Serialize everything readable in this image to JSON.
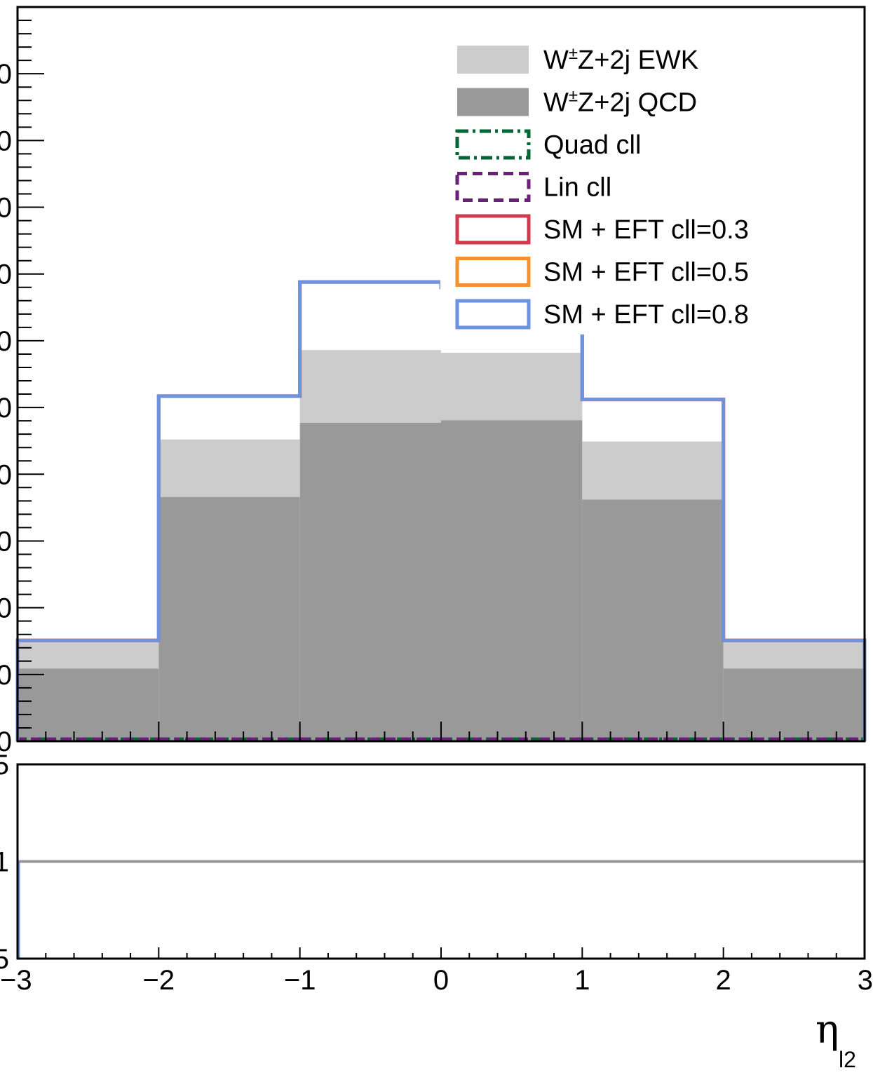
{
  "chart_data": {
    "type": "bar",
    "histtype": "stacked-step",
    "bin_edges": [
      -3,
      -2,
      -1,
      0,
      1,
      2,
      3
    ],
    "top_panel": {
      "ylim": [
        0,
        11
      ],
      "y_tick_labels": [
        "0",
        "0",
        "0",
        "0",
        "0",
        "0",
        "0",
        "0",
        "0",
        "0",
        "0"
      ],
      "stacked_series": [
        {
          "name": "W±Z+2j QCD",
          "values": [
            1.09,
            3.66,
            4.77,
            4.81,
            3.62,
            1.09
          ],
          "color": "#999999"
        },
        {
          "name": "W±Z+2j EWK",
          "values": [
            0.42,
            0.86,
            1.09,
            1.01,
            0.87,
            0.42
          ],
          "color": "#cccccc"
        }
      ],
      "line_series": [
        {
          "name": "Quad cll",
          "values": [
            0.03,
            0.03,
            0.03,
            0.03,
            0.03,
            0.03
          ],
          "color": "#006633",
          "style": "dash-dot"
        },
        {
          "name": "Lin cll",
          "values": [
            0.03,
            0.03,
            0.03,
            0.03,
            0.03,
            0.03
          ],
          "color": "#6b1f7a",
          "style": "dashed"
        },
        {
          "name": "SM + EFT cll=0.3",
          "values": [
            1.51,
            5.17,
            6.88,
            6.8,
            5.12,
            1.51
          ],
          "color": "#d03a4c",
          "style": "solid"
        },
        {
          "name": "SM + EFT cll=0.5",
          "values": [
            1.51,
            5.17,
            6.88,
            6.8,
            5.12,
            1.51
          ],
          "color": "#f39030",
          "style": "solid"
        },
        {
          "name": "SM + EFT cll=0.8",
          "values": [
            1.51,
            5.17,
            6.88,
            6.8,
            5.12,
            1.51
          ],
          "color": "#6e92e0",
          "style": "solid"
        }
      ],
      "legend_placement": "top-right"
    },
    "ratio_panel": {
      "ylim": [
        0.5,
        1.5
      ],
      "y_tick_labels": [
        "5",
        "1",
        "5"
      ],
      "ratio_value": 1.0,
      "line_color": "#999999"
    },
    "x_tick_labels": [
      "−3",
      "−2",
      "−1",
      "0",
      "1",
      "2",
      "3"
    ],
    "xlim": [
      -3,
      3
    ],
    "xlabel": "η",
    "xlabel_sub": "l2"
  },
  "legend": [
    {
      "label_main": "W",
      "label_sup": "±",
      "label_rest": "Z+2j EWK",
      "color": "#cccccc",
      "style": "fill"
    },
    {
      "label_main": "W",
      "label_sup": "±",
      "label_rest": "Z+2j QCD",
      "color": "#999999",
      "style": "fill"
    },
    {
      "label_main": "Quad cll",
      "color": "#006633",
      "style": "dash-dot"
    },
    {
      "label_main": "Lin cll",
      "color": "#6b1f7a",
      "style": "dashed"
    },
    {
      "label_main": "SM + EFT cll=0.3",
      "color": "#d03a4c",
      "style": "solid"
    },
    {
      "label_main": "SM + EFT cll=0.5",
      "color": "#f39030",
      "style": "solid"
    },
    {
      "label_main": "SM + EFT cll=0.8",
      "color": "#6e92e0",
      "style": "solid"
    }
  ]
}
